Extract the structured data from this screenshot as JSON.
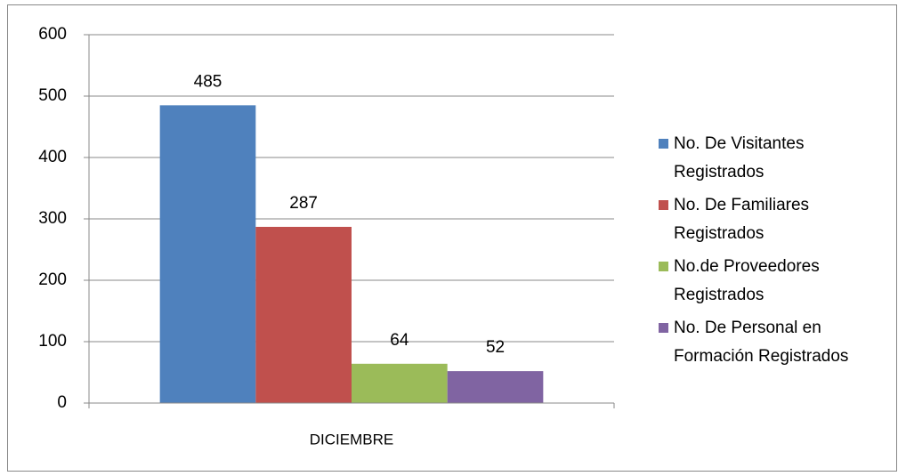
{
  "chart_data": {
    "type": "bar",
    "categories": [
      "DICIEMBRE"
    ],
    "series": [
      {
        "name": "No. De Visitantes Registrados",
        "color": "#4f81bd",
        "values": [
          485
        ]
      },
      {
        "name": "No. De Familiares Registrados",
        "color": "#c0504d",
        "values": [
          287
        ]
      },
      {
        "name": "No.de Proveedores Registrados",
        "color": "#9bbb59",
        "values": [
          64
        ]
      },
      {
        "name": "No. De Personal en Formación Registrados",
        "color": "#8064a2",
        "values": [
          52
        ]
      }
    ],
    "ylim": [
      0,
      600
    ],
    "yticks": [
      0,
      100,
      200,
      300,
      400,
      500,
      600
    ],
    "grid": true,
    "legend": "right"
  }
}
